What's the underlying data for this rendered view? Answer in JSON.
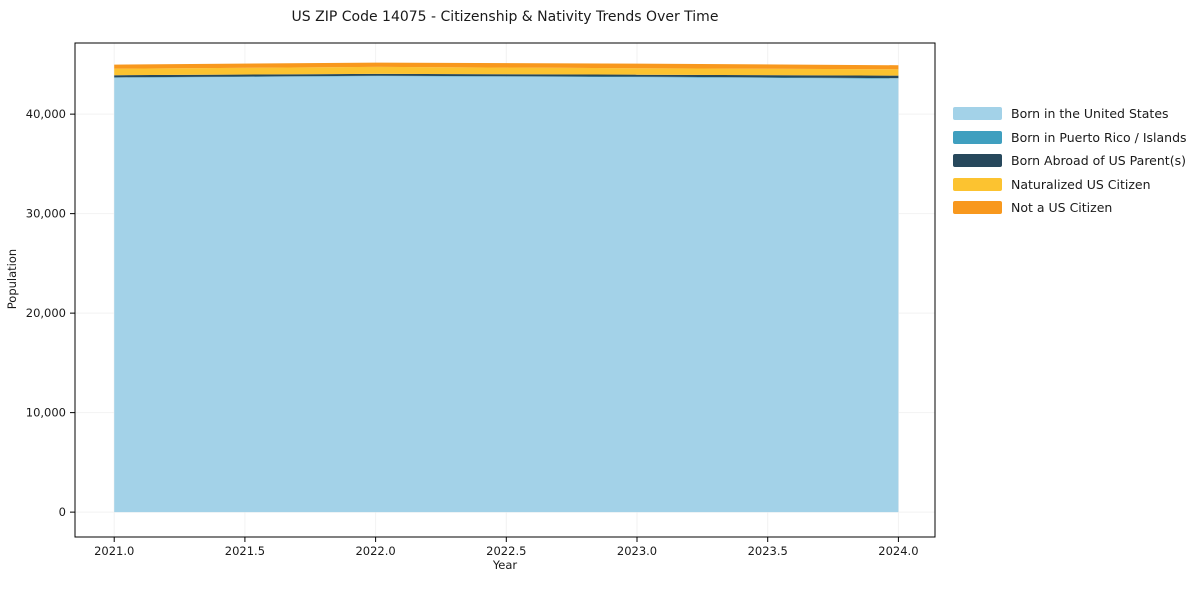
{
  "title": "US ZIP Code 14075 - Citizenship & Nativity Trends Over Time",
  "chart_data": {
    "type": "area",
    "stacked": true,
    "title": "US ZIP Code 14075 - Citizenship & Nativity Trends Over Time",
    "xlabel": "Year",
    "ylabel": "Population",
    "x": [
      2021,
      2022,
      2023,
      2024
    ],
    "series": [
      {
        "name": "Born in the United States",
        "color": "#a3d2e8",
        "values": [
          43660,
          43820,
          43720,
          43570
        ]
      },
      {
        "name": "Born in Puerto Rico / Islands",
        "color": "#3f9fbf",
        "values": [
          40,
          40,
          45,
          45
        ]
      },
      {
        "name": "Born Abroad of US Parent(s)",
        "color": "#27485c",
        "values": [
          210,
          190,
          200,
          250
        ]
      },
      {
        "name": "Naturalized US Citizen",
        "color": "#fcc330",
        "values": [
          660,
          700,
          650,
          640
        ]
      },
      {
        "name": "Not a US Citizen",
        "color": "#f8981d",
        "values": [
          410,
          430,
          460,
          410
        ]
      }
    ],
    "xlim": [
      2020.85,
      2024.14
    ],
    "ylim": [
      -2500,
      47150
    ],
    "xticks": [
      2021.0,
      2021.5,
      2022.0,
      2022.5,
      2023.0,
      2023.5,
      2024.0
    ],
    "xtick_labels": [
      "2021.0",
      "2021.5",
      "2022.0",
      "2022.5",
      "2023.0",
      "2023.5",
      "2024.0"
    ],
    "yticks": [
      0,
      10000,
      20000,
      30000,
      40000
    ],
    "ytick_labels": [
      "0",
      "10,000",
      "20,000",
      "30,000",
      "40,000"
    ],
    "grid": true,
    "legend_position": "right-of-plot"
  },
  "style": {
    "grid_color": "#f2f2f2",
    "spine_color": "#000000",
    "tick_color": "#000000",
    "text_color": "#1a1a1a",
    "background": "#ffffff"
  }
}
